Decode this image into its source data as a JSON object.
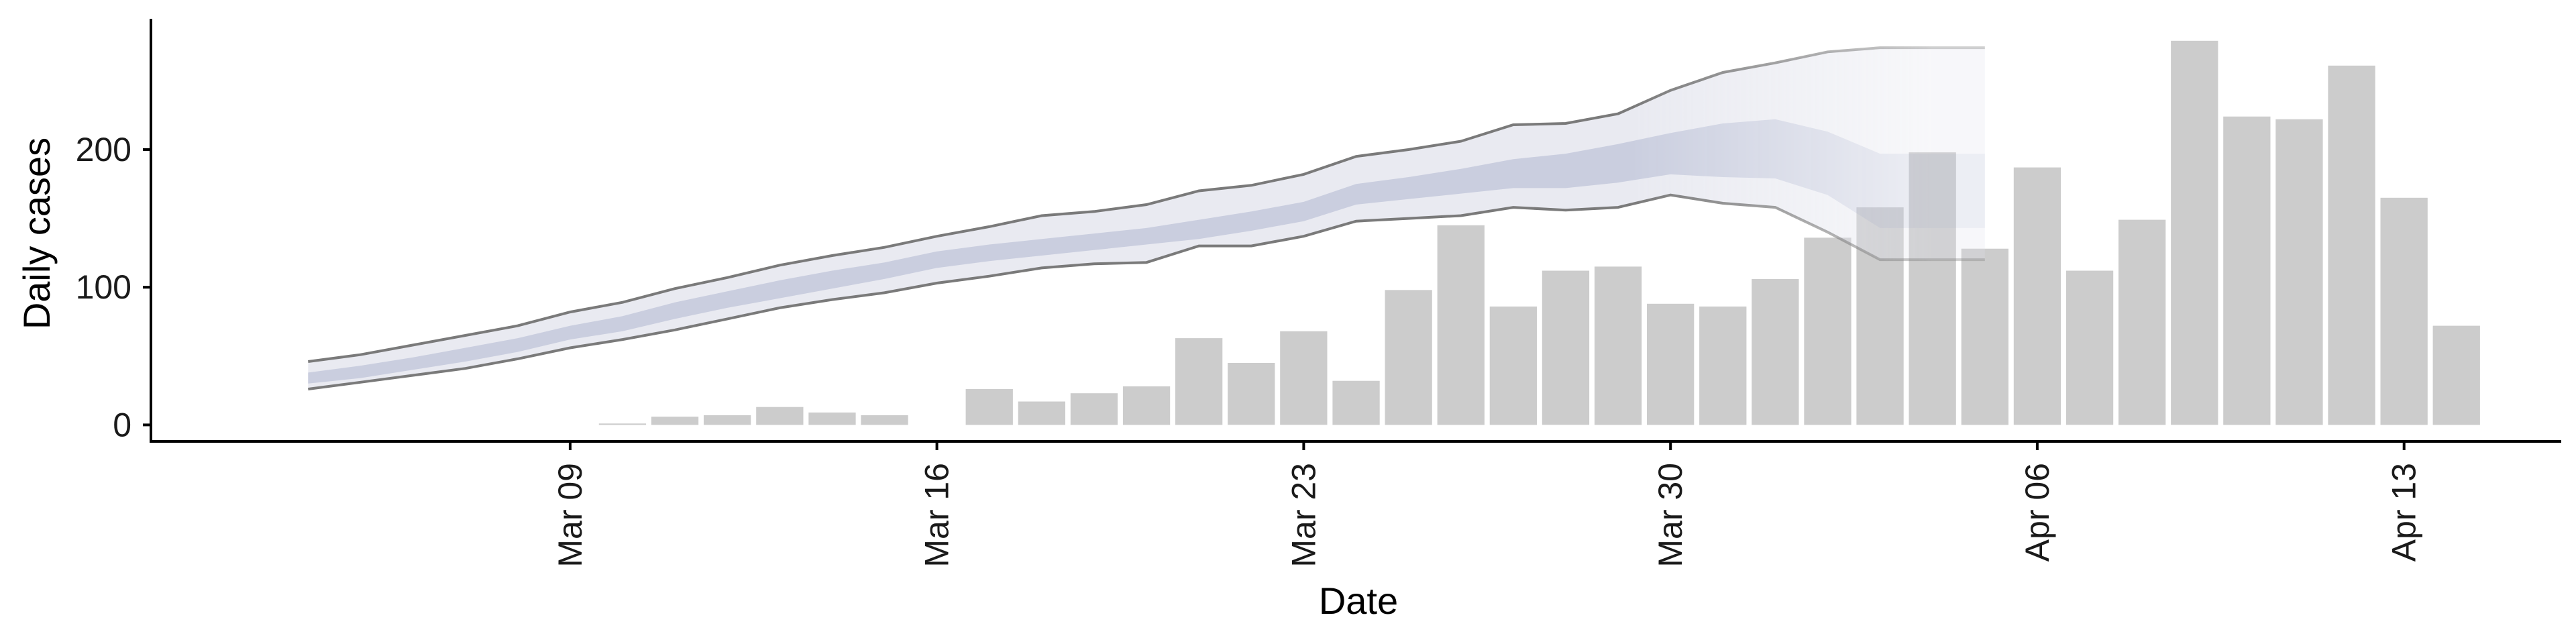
{
  "chart_data": {
    "type": "bar",
    "xlabel": "Date",
    "ylabel": "Daily cases",
    "x_range": [
      "2021-03-01",
      "2021-04-16"
    ],
    "ylim": [
      -12,
      295
    ],
    "y_ticks": [
      0,
      100,
      200
    ],
    "x_ticks": [
      {
        "date": "2021-03-09",
        "label": "Mar 09"
      },
      {
        "date": "2021-03-16",
        "label": "Mar 16"
      },
      {
        "date": "2021-03-23",
        "label": "Mar 23"
      },
      {
        "date": "2021-03-30",
        "label": "Mar 30"
      },
      {
        "date": "2021-04-06",
        "label": "Apr 06"
      },
      {
        "date": "2021-04-13",
        "label": "Apr 13"
      }
    ],
    "grid": false,
    "colors": {
      "bars": "#cccccc",
      "band_outer": "#e2e3ec",
      "band_inner": "#c5cadd",
      "bound_lines": "#7a7a7a",
      "axis": "#000000"
    },
    "bars": {
      "x": [
        "2021-03-10",
        "2021-03-11",
        "2021-03-12",
        "2021-03-13",
        "2021-03-14",
        "2021-03-15",
        "2021-03-17",
        "2021-03-18",
        "2021-03-19",
        "2021-03-20",
        "2021-03-21",
        "2021-03-22",
        "2021-03-23",
        "2021-03-24",
        "2021-03-25",
        "2021-03-26",
        "2021-03-27",
        "2021-03-28",
        "2021-03-29",
        "2021-03-30",
        "2021-03-31",
        "2021-04-01",
        "2021-04-02",
        "2021-04-03",
        "2021-04-04",
        "2021-04-05",
        "2021-04-06",
        "2021-04-07",
        "2021-04-08",
        "2021-04-09",
        "2021-04-10",
        "2021-04-11",
        "2021-04-12",
        "2021-04-13",
        "2021-04-14"
      ],
      "values": [
        1,
        6,
        7,
        13,
        9,
        7,
        26,
        17,
        23,
        28,
        63,
        45,
        68,
        32,
        98,
        145,
        86,
        112,
        115,
        88,
        86,
        106,
        136,
        158,
        198,
        128,
        187,
        112,
        149,
        279,
        224,
        222,
        261,
        165,
        72
      ]
    },
    "nowcast": {
      "x": [
        "2021-03-04",
        "2021-03-05",
        "2021-03-06",
        "2021-03-07",
        "2021-03-08",
        "2021-03-09",
        "2021-03-10",
        "2021-03-11",
        "2021-03-12",
        "2021-03-13",
        "2021-03-14",
        "2021-03-15",
        "2021-03-16",
        "2021-03-17",
        "2021-03-18",
        "2021-03-19",
        "2021-03-20",
        "2021-03-21",
        "2021-03-22",
        "2021-03-23",
        "2021-03-24",
        "2021-03-25",
        "2021-03-26",
        "2021-03-27",
        "2021-03-28",
        "2021-03-29",
        "2021-03-30",
        "2021-03-31",
        "2021-04-01",
        "2021-04-02",
        "2021-04-03",
        "2021-04-04",
        "2021-04-05"
      ],
      "upper": [
        46,
        51,
        58,
        65,
        72,
        82,
        89,
        99,
        107,
        116,
        123,
        129,
        137,
        144,
        152,
        155,
        160,
        170,
        174,
        182,
        195,
        200,
        206,
        218,
        219,
        226,
        243,
        256,
        263,
        271,
        274,
        274,
        274
      ],
      "inner_upper": [
        38,
        43,
        49,
        56,
        63,
        72,
        79,
        89,
        97,
        105,
        112,
        118,
        126,
        131,
        135,
        139,
        143,
        149,
        155,
        162,
        175,
        180,
        186,
        193,
        197,
        204,
        212,
        219,
        222,
        213,
        197,
        197,
        197
      ],
      "inner_lower": [
        30,
        34,
        40,
        46,
        53,
        62,
        68,
        77,
        85,
        92,
        99,
        106,
        114,
        119,
        123,
        127,
        131,
        135,
        141,
        148,
        160,
        164,
        168,
        172,
        172,
        176,
        182,
        180,
        179,
        167,
        143,
        143,
        143
      ],
      "lower": [
        26,
        31,
        36,
        41,
        48,
        56,
        62,
        69,
        77,
        85,
        91,
        96,
        103,
        108,
        114,
        117,
        118,
        130,
        130,
        137,
        148,
        150,
        152,
        158,
        156,
        158,
        167,
        161,
        158,
        140,
        120,
        120,
        120
      ]
    }
  }
}
